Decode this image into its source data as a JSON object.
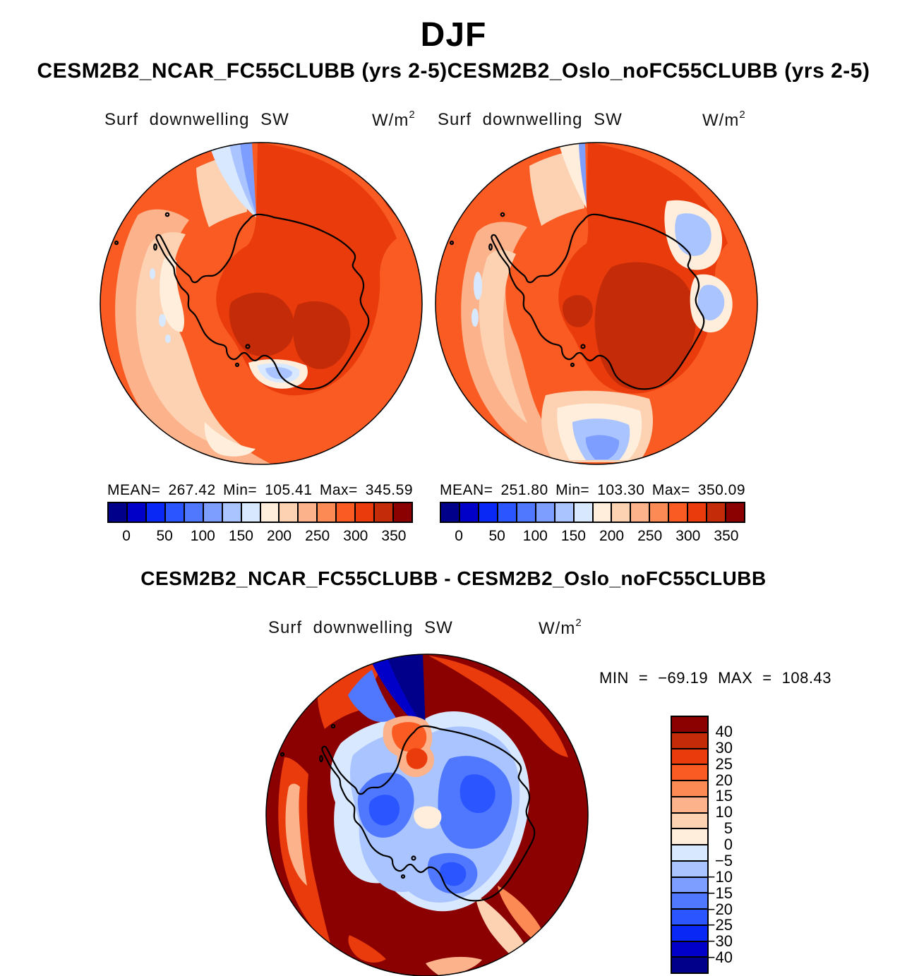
{
  "colors": {
    "background": "#ffffff",
    "text": "#000000",
    "coastline": "#000000",
    "palette": [
      "#00008B",
      "#0000C8",
      "#0A28F5",
      "#2B55FF",
      "#5078FF",
      "#7D9EFF",
      "#AAC4FF",
      "#D8E8FF",
      "#FEEEDB",
      "#FCD2B3",
      "#FCB28A",
      "#FC8A55",
      "#F95B22",
      "#E93B0B",
      "#C32B09",
      "#8B0000"
    ]
  },
  "header": {
    "title": "DJF",
    "subtitle": "CESM2B2_NCAR_FC55CLUBB (yrs 2-5)CESM2B2_Oslo_noFC55CLUBB (yrs 2-5)"
  },
  "panel_a": {
    "var_label": "Surf downwelling SW",
    "units_base": "W/m",
    "units_exp": "2",
    "mean_label": "MEAN=",
    "mean": "267.42",
    "min_label": "Min=",
    "min": "105.41",
    "max_label": "Max=",
    "max": "345.59"
  },
  "panel_b": {
    "var_label": "Surf downwelling SW",
    "units_base": "W/m",
    "units_exp": "2",
    "mean_label": "MEAN=",
    "mean": "251.80",
    "min_label": "Min=",
    "min": "103.30",
    "max_label": "Max=",
    "max": "350.09"
  },
  "diff": {
    "title": "CESM2B2_NCAR_FC55CLUBB - CESM2B2_Oslo_noFC55CLUBB",
    "var_label": "Surf downwelling SW",
    "units_base": "W/m",
    "units_exp": "2",
    "min_label": "MIN",
    "equals": "=",
    "min": "−69.19",
    "max_label": "MAX",
    "max": "108.43"
  },
  "colorbar_top": {
    "tick_labels": [
      "0",
      "50",
      "100",
      "150",
      "200",
      "250",
      "300",
      "350"
    ]
  },
  "colorbar_diff": {
    "labels": [
      "40",
      "30",
      "25",
      "20",
      "15",
      "10",
      "5",
      "0",
      "−5",
      "−10",
      "−15",
      "−20",
      "−25",
      "−30",
      "−40"
    ]
  },
  "chart_data": [
    {
      "type": "heatmap",
      "subtype": "filled-contour-south-polar-map",
      "title": "CESM2B2_NCAR_FC55CLUBB (yrs 2-5)",
      "season": "DJF",
      "variable": "Surf downwelling SW",
      "units": "W/m2",
      "region": "Antarctica, south polar stereographic",
      "stats": {
        "mean": 267.42,
        "min": 105.41,
        "max": 345.59
      },
      "contour_levels": [
        0,
        25,
        50,
        75,
        100,
        125,
        150,
        175,
        200,
        225,
        250,
        275,
        300,
        325,
        350
      ],
      "colorbar_tick_labels": [
        0,
        50,
        100,
        150,
        200,
        250,
        300,
        350
      ],
      "colormap": "blue-to-red, 16 bins",
      "legend_position": "below"
    },
    {
      "type": "heatmap",
      "subtype": "filled-contour-south-polar-map",
      "title": "CESM2B2_Oslo_noFC55CLUBB (yrs 2-5)",
      "season": "DJF",
      "variable": "Surf downwelling SW",
      "units": "W/m2",
      "region": "Antarctica, south polar stereographic",
      "stats": {
        "mean": 251.8,
        "min": 103.3,
        "max": 350.09
      },
      "contour_levels": [
        0,
        25,
        50,
        75,
        100,
        125,
        150,
        175,
        200,
        225,
        250,
        275,
        300,
        325,
        350
      ],
      "colorbar_tick_labels": [
        0,
        50,
        100,
        150,
        200,
        250,
        300,
        350
      ],
      "colormap": "blue-to-red, 16 bins",
      "legend_position": "below"
    },
    {
      "type": "heatmap",
      "subtype": "filled-contour-south-polar-map",
      "title": "CESM2B2_NCAR_FC55CLUBB - CESM2B2_Oslo_noFC55CLUBB",
      "season": "DJF",
      "variable": "Surf downwelling SW",
      "units": "W/m2",
      "region": "Antarctica, south polar stereographic",
      "stats": {
        "min": -69.19,
        "max": 108.43
      },
      "contour_levels": [
        -40,
        -30,
        -25,
        -20,
        -15,
        -10,
        -5,
        0,
        5,
        10,
        15,
        20,
        25,
        30,
        40
      ],
      "colormap": "blue-to-red, 16 bins",
      "legend_position": "right"
    }
  ]
}
